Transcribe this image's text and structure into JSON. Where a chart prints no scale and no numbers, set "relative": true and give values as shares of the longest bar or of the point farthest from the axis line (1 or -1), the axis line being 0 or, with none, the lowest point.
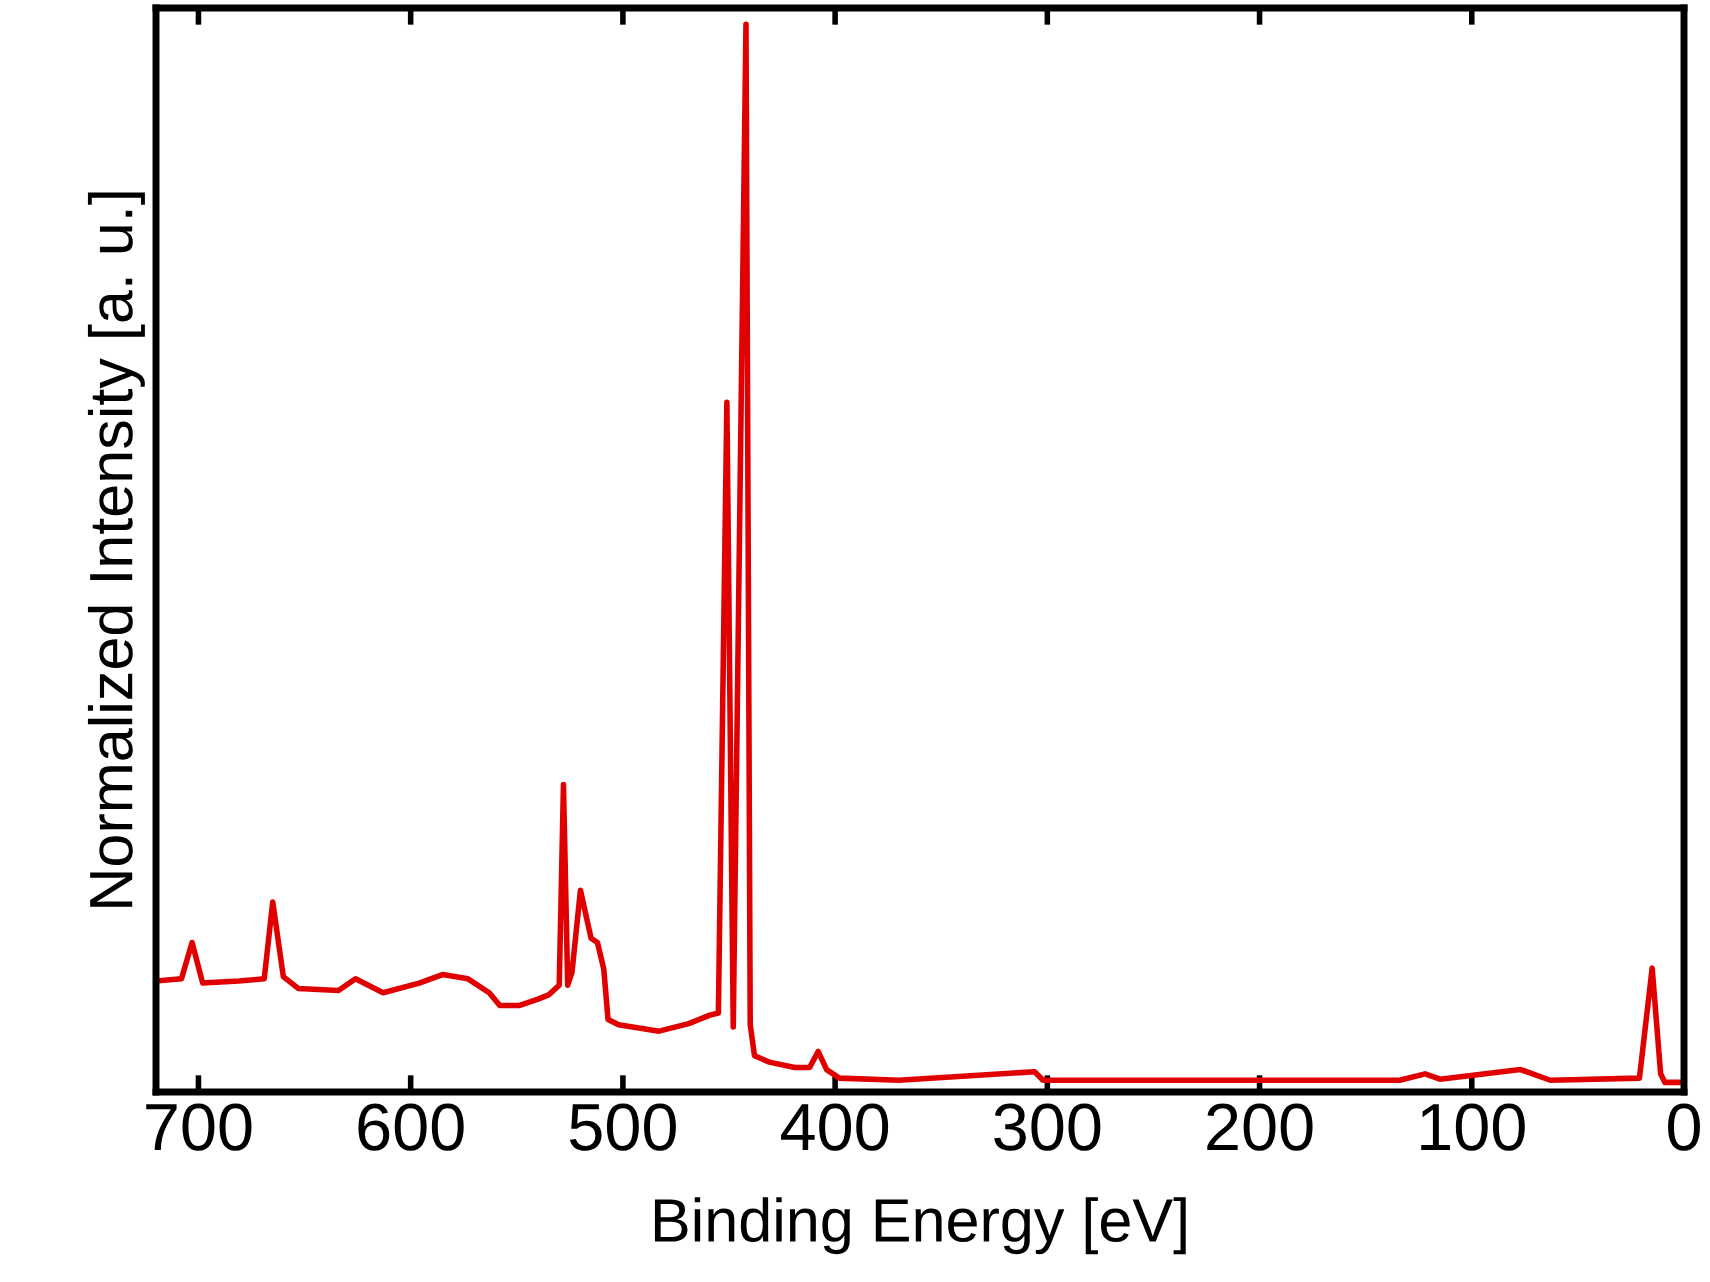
{
  "chart_data": {
    "type": "line",
    "xlabel": "Binding Energy [eV]",
    "ylabel": "Normalized Intensity [a. u.]",
    "relative": true,
    "xlim": [
      720,
      0
    ],
    "xticks": [
      700,
      600,
      500,
      400,
      300,
      200,
      100,
      0
    ],
    "grid": false,
    "legend": false,
    "marker": "none",
    "line_style": "solid",
    "series": [
      {
        "color": "#e00000",
        "x": [
          720,
          708,
          703,
          698,
          681,
          669,
          665,
          660,
          653,
          634,
          626,
          613,
          596,
          585,
          573,
          563,
          558,
          549,
          540,
          535,
          530,
          528,
          526,
          524,
          520,
          515,
          512,
          509,
          507,
          502,
          483,
          469,
          459,
          455,
          451,
          448,
          442,
          440,
          438,
          431,
          419,
          412,
          408,
          404,
          398,
          370,
          306,
          302,
          134,
          122,
          115,
          77,
          63,
          21,
          15,
          11,
          9,
          0
        ],
        "values": [
          0.104,
          0.106,
          0.14,
          0.102,
          0.104,
          0.106,
          0.178,
          0.108,
          0.097,
          0.095,
          0.106,
          0.093,
          0.102,
          0.11,
          0.106,
          0.093,
          0.081,
          0.081,
          0.087,
          0.091,
          0.1,
          0.288,
          0.1,
          0.112,
          0.189,
          0.144,
          0.14,
          0.115,
          0.068,
          0.063,
          0.057,
          0.064,
          0.072,
          0.074,
          0.646,
          0.061,
          1.0,
          0.063,
          0.034,
          0.028,
          0.023,
          0.023,
          0.038,
          0.021,
          0.013,
          0.011,
          0.019,
          0.011,
          0.011,
          0.017,
          0.012,
          0.021,
          0.011,
          0.013,
          0.116,
          0.017,
          0.009,
          0.009
        ]
      }
    ]
  }
}
